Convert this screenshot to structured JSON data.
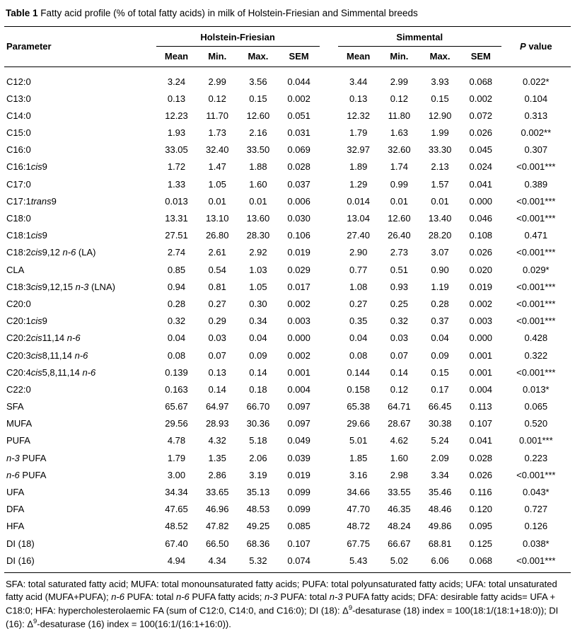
{
  "title": {
    "label": "Table 1",
    "text": "Fatty acid profile (% of total fatty acids) in milk of Holstein-Friesian and Simmental breeds"
  },
  "table": {
    "param_header": "Parameter",
    "group1": "Holstein-Friesian",
    "group2": "Simmental",
    "subheaders": [
      "Mean",
      "Min.",
      "Max.",
      "SEM"
    ],
    "p_header": "_P_ value",
    "rows": [
      {
        "param": "C12:0",
        "hf": [
          "3.24",
          "2.99",
          "3.56",
          "0.044"
        ],
        "sim": [
          "3.44",
          "2.99",
          "3.93",
          "0.068"
        ],
        "p": "0.022*"
      },
      {
        "param": "C13:0",
        "hf": [
          "0.13",
          "0.12",
          "0.15",
          "0.002"
        ],
        "sim": [
          "0.13",
          "0.12",
          "0.15",
          "0.002"
        ],
        "p": "0.104"
      },
      {
        "param": "C14:0",
        "hf": [
          "12.23",
          "11.70",
          "12.60",
          "0.051"
        ],
        "sim": [
          "12.32",
          "11.80",
          "12.90",
          "0.072"
        ],
        "p": "0.313"
      },
      {
        "param": "C15:0",
        "hf": [
          "1.93",
          "1.73",
          "2.16",
          "0.031"
        ],
        "sim": [
          "1.79",
          "1.63",
          "1.99",
          "0.026"
        ],
        "p": "0.002**"
      },
      {
        "param": "C16:0",
        "hf": [
          "33.05",
          "32.40",
          "33.50",
          "0.069"
        ],
        "sim": [
          "32.97",
          "32.60",
          "33.30",
          "0.045"
        ],
        "p": "0.307"
      },
      {
        "param": "C16:1_cis_9",
        "hf": [
          "1.72",
          "1.47",
          "1.88",
          "0.028"
        ],
        "sim": [
          "1.89",
          "1.74",
          "2.13",
          "0.024"
        ],
        "p": "<0.001***"
      },
      {
        "param": "C17:0",
        "hf": [
          "1.33",
          "1.05",
          "1.60",
          "0.037"
        ],
        "sim": [
          "1.29",
          "0.99",
          "1.57",
          "0.041"
        ],
        "p": "0.389"
      },
      {
        "param": "C17:1_trans_9",
        "hf": [
          "0.013",
          "0.01",
          "0.01",
          "0.006"
        ],
        "sim": [
          "0.014",
          "0.01",
          "0.01",
          "0.000"
        ],
        "p": "<0.001***"
      },
      {
        "param": "C18:0",
        "hf": [
          "13.31",
          "13.10",
          "13.60",
          "0.030"
        ],
        "sim": [
          "13.04",
          "12.60",
          "13.40",
          "0.046"
        ],
        "p": "<0.001***"
      },
      {
        "param": "C18:1_cis_9",
        "hf": [
          "27.51",
          "26.80",
          "28.30",
          "0.106"
        ],
        "sim": [
          "27.40",
          "26.40",
          "28.20",
          "0.108"
        ],
        "p": "0.471"
      },
      {
        "param": "C18:2_cis_9,12 _n-6_ (LA)",
        "hf": [
          "2.74",
          "2.61",
          "2.92",
          "0.019"
        ],
        "sim": [
          "2.90",
          "2.73",
          "3.07",
          "0.026"
        ],
        "p": "<0.001***"
      },
      {
        "param": "CLA",
        "hf": [
          "0.85",
          "0.54",
          "1.03",
          "0.029"
        ],
        "sim": [
          "0.77",
          "0.51",
          "0.90",
          "0.020"
        ],
        "p": "0.029*"
      },
      {
        "param": "C18:3_cis_9,12,15 _n-3_ (LNA)",
        "hf": [
          "0.94",
          "0.81",
          "1.05",
          "0.017"
        ],
        "sim": [
          "1.08",
          "0.93",
          "1.19",
          "0.019"
        ],
        "p": "<0.001***"
      },
      {
        "param": "C20:0",
        "hf": [
          "0.28",
          "0.27",
          "0.30",
          "0.002"
        ],
        "sim": [
          "0.27",
          "0.25",
          "0.28",
          "0.002"
        ],
        "p": "<0.001***"
      },
      {
        "param": "C20:1_cis_9",
        "hf": [
          "0.32",
          "0.29",
          "0.34",
          "0.003"
        ],
        "sim": [
          "0.35",
          "0.32",
          "0.37",
          "0.003"
        ],
        "p": "<0.001***"
      },
      {
        "param": "C20:2_cis_11,14 _n-6_",
        "hf": [
          "0.04",
          "0.03",
          "0.04",
          "0.000"
        ],
        "sim": [
          "0.04",
          "0.03",
          "0.04",
          "0.000"
        ],
        "p": "0.428"
      },
      {
        "param": "C20:3_cis_8,11,14 _n-6_",
        "hf": [
          "0.08",
          "0.07",
          "0.09",
          "0.002"
        ],
        "sim": [
          "0.08",
          "0.07",
          "0.09",
          "0.001"
        ],
        "p": "0.322"
      },
      {
        "param": "C20:4_cis_5,8,11,14 _n-6_",
        "hf": [
          "0.139",
          "0.13",
          "0.14",
          "0.001"
        ],
        "sim": [
          "0.144",
          "0.14",
          "0.15",
          "0.001"
        ],
        "p": "<0.001***"
      },
      {
        "param": "C22:0",
        "hf": [
          "0.163",
          "0.14",
          "0.18",
          "0.004"
        ],
        "sim": [
          "0.158",
          "0.12",
          "0.17",
          "0.004"
        ],
        "p": "0.013*"
      },
      {
        "param": "SFA",
        "hf": [
          "65.67",
          "64.97",
          "66.70",
          "0.097"
        ],
        "sim": [
          "65.38",
          "64.71",
          "66.45",
          "0.113"
        ],
        "p": "0.065"
      },
      {
        "param": "MUFA",
        "hf": [
          "29.56",
          "28.93",
          "30.36",
          "0.097"
        ],
        "sim": [
          "29.66",
          "28.67",
          "30.38",
          "0.107"
        ],
        "p": "0.520"
      },
      {
        "param": "PUFA",
        "hf": [
          "4.78",
          "4.32",
          "5.18",
          "0.049"
        ],
        "sim": [
          "5.01",
          "4.62",
          "5.24",
          "0.041"
        ],
        "p": "0.001***"
      },
      {
        "param": "_n-3_ PUFA",
        "hf": [
          "1.79",
          "1.35",
          "2.06",
          "0.039"
        ],
        "sim": [
          "1.85",
          "1.60",
          "2.09",
          "0.028"
        ],
        "p": "0.223"
      },
      {
        "param": "_n-6_ PUFA",
        "hf": [
          "3.00",
          "2.86",
          "3.19",
          "0.019"
        ],
        "sim": [
          "3.16",
          "2.98",
          "3.34",
          "0.026"
        ],
        "p": "<0.001***"
      },
      {
        "param": "UFA",
        "hf": [
          "34.34",
          "33.65",
          "35.13",
          "0.099"
        ],
        "sim": [
          "34.66",
          "33.55",
          "35.46",
          "0.116"
        ],
        "p": "0.043*"
      },
      {
        "param": "DFA",
        "hf": [
          "47.65",
          "46.96",
          "48.53",
          "0.099"
        ],
        "sim": [
          "47.70",
          "46.35",
          "48.46",
          "0.120"
        ],
        "p": "0.727"
      },
      {
        "param": "HFA",
        "hf": [
          "48.52",
          "47.82",
          "49.25",
          "0.085"
        ],
        "sim": [
          "48.72",
          "48.24",
          "49.86",
          "0.095"
        ],
        "p": "0.126"
      },
      {
        "param": "DI (18)",
        "hf": [
          "67.40",
          "66.50",
          "68.36",
          "0.107"
        ],
        "sim": [
          "67.75",
          "66.67",
          "68.81",
          "0.125"
        ],
        "p": "0.038*"
      },
      {
        "param": "DI (16)",
        "hf": [
          "4.94",
          "4.34",
          "5.32",
          "0.074"
        ],
        "sim": [
          "5.43",
          "5.02",
          "6.06",
          "0.068"
        ],
        "p": "<0.001***"
      }
    ]
  },
  "footnote": "SFA: total saturated fatty acid; MUFA: total monounsaturated fatty acids; PUFA: total polyunsaturated fatty acids; UFA: total unsaturated fatty acid (MUFA+PUFA); _n-6_ PUFA: total _n-6_ PUFA fatty acids; _n-3_ PUFA: total _n-3_ PUFA fatty acids; DFA: desirable fatty acids= UFA + C18:0; HFA: hypercholesterolaemic FA (sum of C12:0, C14:0, and C16:0); DI (18): Δ^9^-desaturase (18) index = 100(18:1/(18:1+18:0)); DI (16): Δ^9^-desaturase (16) index = 100(16:1/(16:1+16:0))."
}
